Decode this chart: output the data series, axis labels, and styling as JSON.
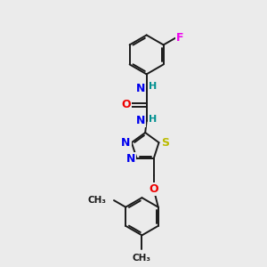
{
  "background_color": "#ebebeb",
  "bond_color": "#1a1a1a",
  "atom_colors": {
    "N": "#0000ee",
    "O": "#ee0000",
    "S": "#bbbb00",
    "F": "#ee00ee",
    "C": "#1a1a1a",
    "H": "#009090"
  },
  "figsize": [
    3.0,
    3.0
  ],
  "dpi": 100
}
